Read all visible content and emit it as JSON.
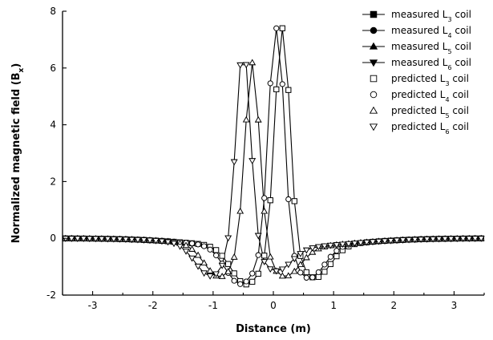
{
  "chart_data": {
    "type": "line",
    "title": "",
    "xlabel": "Distance (m)",
    "ylabel_main": "Normalized magnetic field (B",
    "ylabel_sub": "x",
    "ylabel_end": ")",
    "xlim": [
      -3.5,
      3.5
    ],
    "ylim": [
      -2,
      8
    ],
    "xticks": [
      -3,
      -2,
      -1,
      0,
      1,
      2,
      3
    ],
    "yticks": [
      -2,
      0,
      2,
      4,
      6,
      8
    ],
    "grid": false,
    "legend_position": "top-right",
    "series": [
      {
        "name_main": "measured L",
        "name_sub": "3",
        "name_end": " coil",
        "marker": "square-filled",
        "line": true,
        "peak_x": 0.15,
        "peak": 7.0,
        "min_x": 0.7,
        "min": -1.3,
        "neg_x": -0.45,
        "neg": -1.5
      },
      {
        "name_main": "measured L",
        "name_sub": "4",
        "name_end": " coil",
        "marker": "circle-filled",
        "line": true,
        "peak_x": 0.05,
        "peak": 7.3,
        "min_x": 0.6,
        "min": -1.3,
        "neg_x": -0.55,
        "neg": -1.5
      },
      {
        "name_main": "measured L",
        "name_sub": "5",
        "name_end": " coil",
        "marker": "triangle-up-filled",
        "line": true,
        "peak_x": -0.35,
        "peak": 5.5,
        "min_x": 0.2,
        "min": -1.2,
        "neg_x": -0.9,
        "neg": -1.3
      },
      {
        "name_main": "measured L",
        "name_sub": "6",
        "name_end": " coil",
        "marker": "triangle-down-filled",
        "line": true,
        "peak_x": -0.5,
        "peak": 6.0,
        "min_x": 0.05,
        "min": -1.0,
        "neg_x": -1.05,
        "neg": -1.3
      },
      {
        "name_main": "predicted L",
        "name_sub": "3",
        "name_end": " coil",
        "marker": "square-open",
        "line": false,
        "peak_x": 0.15,
        "peak": 7.0,
        "min_x": 0.7,
        "min": -1.3,
        "neg_x": -0.45,
        "neg": -1.5
      },
      {
        "name_main": "predicted L",
        "name_sub": "4",
        "name_end": " coil",
        "marker": "circle-open",
        "line": false,
        "peak_x": 0.05,
        "peak": 7.3,
        "min_x": 0.6,
        "min": -1.3,
        "neg_x": -0.55,
        "neg": -1.5
      },
      {
        "name_main": "predicted L",
        "name_sub": "5",
        "name_end": " coil",
        "marker": "triangle-up-open",
        "line": false,
        "peak_x": -0.35,
        "peak": 5.5,
        "min_x": 0.2,
        "min": -1.2,
        "neg_x": -0.9,
        "neg": -1.3
      },
      {
        "name_main": "predicted L",
        "name_sub": "6",
        "name_end": " coil",
        "marker": "triangle-down-open",
        "line": false,
        "peak_x": -0.5,
        "peak": 6.0,
        "min_x": 0.05,
        "min": -1.0,
        "neg_x": -1.05,
        "neg": -1.3
      }
    ]
  }
}
